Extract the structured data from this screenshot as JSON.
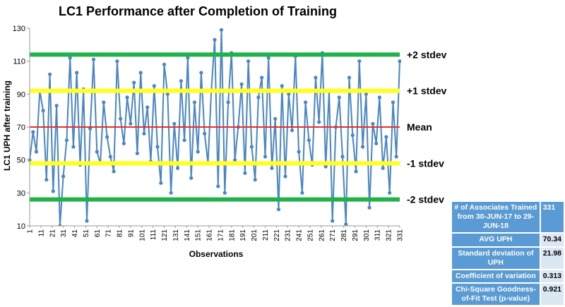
{
  "chart_data": {
    "type": "line",
    "title": "LC1 Performance after Completion of Training",
    "xlabel": "Observations",
    "ylabel": "LC1 UPH after training",
    "ylim": [
      10,
      130
    ],
    "yticks": [
      10,
      30,
      50,
      70,
      90,
      110,
      130
    ],
    "xlim": [
      1,
      331
    ],
    "xticks": [
      1,
      11,
      21,
      31,
      41,
      51,
      61,
      71,
      81,
      91,
      101,
      111,
      121,
      131,
      141,
      151,
      161,
      171,
      181,
      191,
      201,
      211,
      221,
      231,
      241,
      251,
      261,
      271,
      281,
      291,
      301,
      311,
      321,
      331
    ],
    "series": [
      {
        "color": "#4a86c5",
        "x": [
          1,
          4,
          7,
          10,
          13,
          16,
          19,
          22,
          25,
          28,
          31,
          34,
          37,
          40,
          43,
          46,
          49,
          52,
          55,
          58,
          61,
          64,
          67,
          70,
          73,
          76,
          79,
          82,
          85,
          88,
          91,
          94,
          97,
          100,
          103,
          106,
          109,
          112,
          115,
          118,
          121,
          124,
          127,
          130,
          133,
          136,
          139,
          142,
          145,
          148,
          151,
          154,
          157,
          160,
          163,
          166,
          169,
          172,
          175,
          178,
          181,
          184,
          187,
          190,
          193,
          196,
          199,
          202,
          205,
          208,
          211,
          214,
          217,
          220,
          223,
          226,
          229,
          232,
          235,
          238,
          241,
          244,
          247,
          250,
          253,
          256,
          259,
          262,
          265,
          268,
          271,
          274,
          277,
          280,
          283,
          286,
          289,
          292,
          295,
          298,
          301,
          304,
          307,
          310,
          313,
          316,
          319,
          322,
          325,
          328,
          331
        ],
        "values": [
          50,
          67,
          55,
          92,
          80,
          38,
          102,
          31,
          83,
          10,
          40,
          62,
          112,
          58,
          103,
          47,
          93,
          13,
          69,
          111,
          55,
          48,
          85,
          64,
          52,
          43,
          110,
          75,
          60,
          88,
          72,
          97,
          54,
          103,
          66,
          82,
          49,
          95,
          58,
          36,
          108,
          90,
          30,
          72,
          45,
          98,
          62,
          112,
          39,
          85,
          55,
          103,
          66,
          48,
          92,
          123,
          34,
          129,
          30,
          85,
          115,
          50,
          70,
          96,
          42,
          110,
          58,
          38,
          88,
          100,
          52,
          112,
          45,
          75,
          20,
          95,
          40,
          90,
          68,
          113,
          55,
          30,
          85,
          62,
          47,
          100,
          73,
          115,
          46,
          92,
          13,
          70,
          88,
          52,
          11,
          100,
          65,
          43,
          110,
          58,
          90,
          21,
          72,
          60,
          88,
          45,
          64,
          30,
          85,
          52,
          110
        ]
      }
    ],
    "reference_lines": [
      {
        "label": "+2 stdev",
        "value": 114,
        "color": "#21b14a"
      },
      {
        "label": "+1 stdev",
        "value": 92,
        "color": "#ffff22"
      },
      {
        "label": "Mean",
        "value": 70,
        "color": "#e53030"
      },
      {
        "label": "-1 stdev",
        "value": 48,
        "color": "#ffff22"
      },
      {
        "label": "-2 stdev",
        "value": 26,
        "color": "#21b14a"
      }
    ],
    "grid": false,
    "legend": "none"
  },
  "stats_table": [
    {
      "label": "# of Associates Trained from 30-JUN-17 to 29-JUN-18",
      "value": "331"
    },
    {
      "label": "AVG UPH",
      "value": "70.34"
    },
    {
      "label": "Standard deviation of UPH",
      "value": "21.98"
    },
    {
      "label": "Coefficient of variation",
      "value": "0.313"
    },
    {
      "label": "Chi-Square Goodness-of-Fit Test (p-value)",
      "value": "0.921"
    }
  ]
}
